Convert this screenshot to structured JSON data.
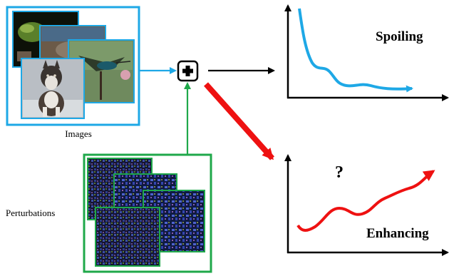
{
  "images_label": "Images",
  "perturbations_label": "Perturbations",
  "spoiling_label": "Spoiling",
  "enhancing_label": "Enhancing",
  "question_mark": "?",
  "colors": {
    "images_frame": "#1ea8e6",
    "perturbations_frame": "#1fa84a",
    "blue_curve": "#1ea8e6",
    "red_curve": "#ee1111",
    "arrow_black": "#000000",
    "arrow_green": "#1fa84a",
    "arrow_blue": "#1ea8e6"
  },
  "icons": {
    "combine": "plus-in-box-icon"
  }
}
